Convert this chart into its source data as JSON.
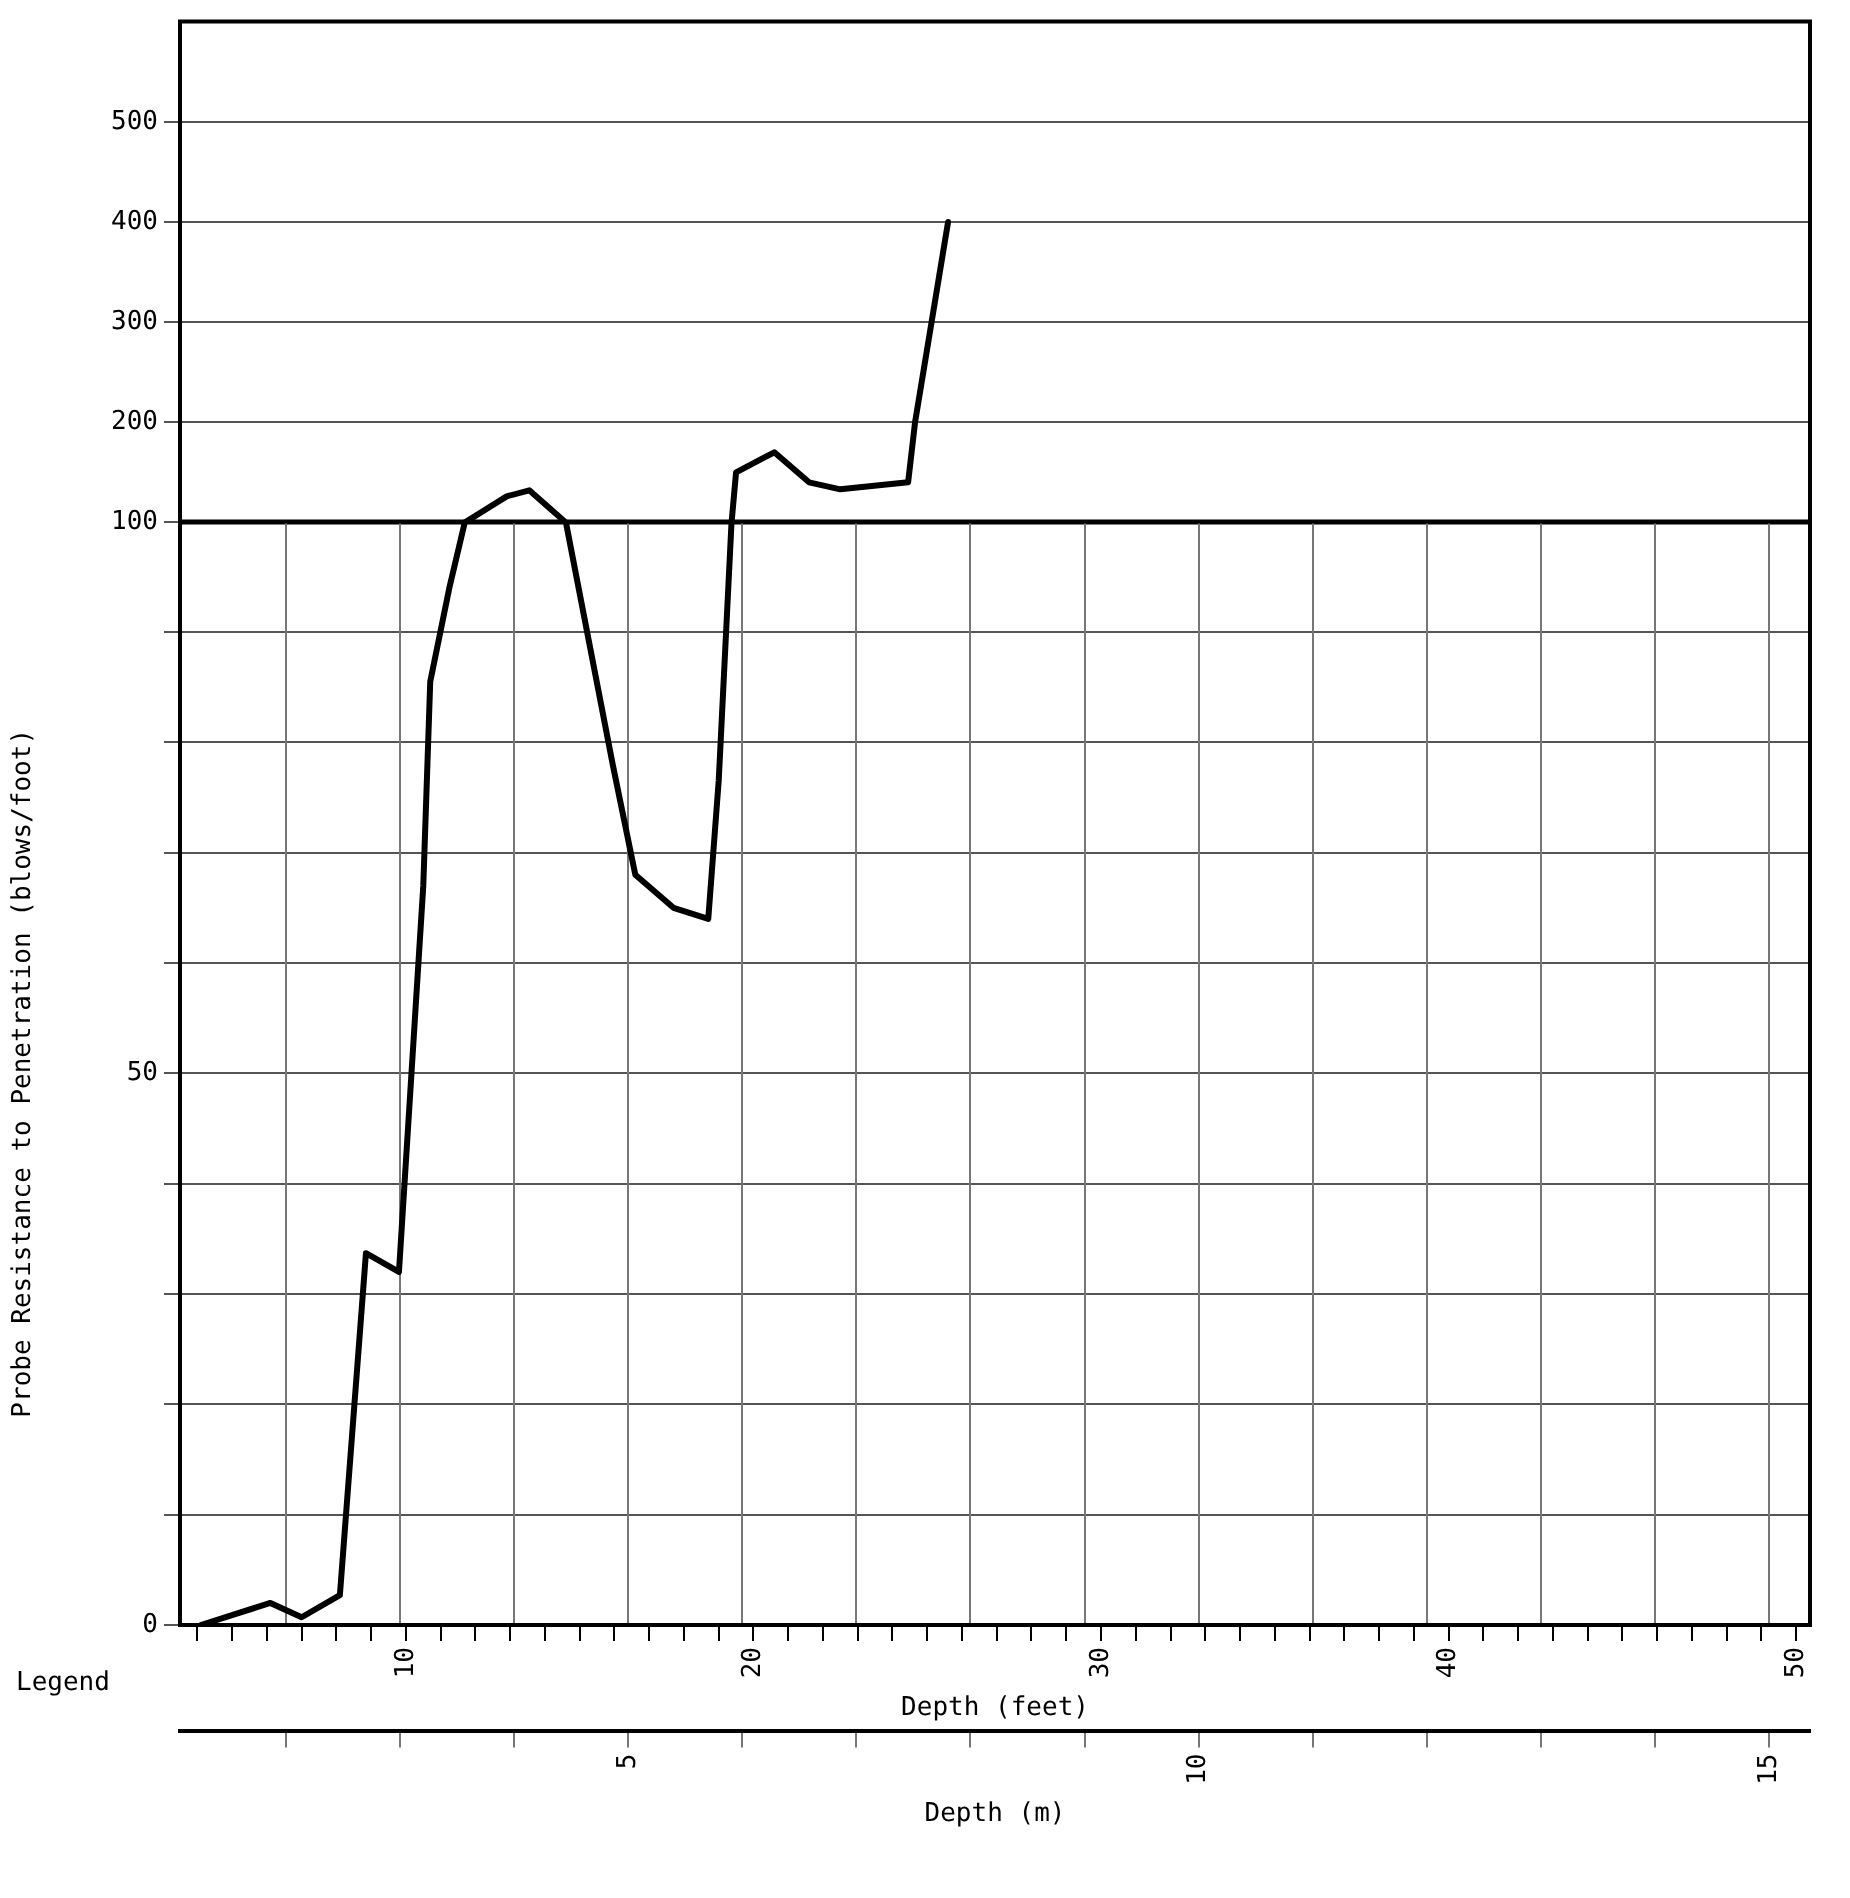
{
  "chart_data": [
    {
      "type": "line",
      "x": [
        11.7,
        12.9,
        13.55,
        14.6,
        15.95,
        16.6,
        17.7,
        18.7,
        19.0,
        19.37,
        19.5,
        20.6,
        21.6,
        22.5,
        24.45,
        24.65,
        25.6
      ],
      "series": [
        {
          "color": "#000000",
          "values": [
            100,
            126,
            132,
            100,
            null,
            null,
            null,
            null,
            null,
            100,
            150,
            170,
            140,
            133,
            140,
            200,
            400
          ]
        }
      ],
      "xlim": [
        3.5,
        50.4
      ],
      "tick_labels": "y",
      "ylim": [
        100,
        600
      ],
      "yticks": [
        100,
        200,
        300,
        400,
        500
      ],
      "grid": "y",
      "marker": "none",
      "line_style": "solid"
    },
    {
      "type": "line",
      "ylabel": "Probe Resistance to Penetration (blows/foot)",
      "xlabel": "Depth (feet)",
      "x2label": "Depth (m)",
      "annotations": [
        "Legend"
      ],
      "x": [
        4.1,
        6.1,
        7.0,
        8.1,
        8.85,
        9.8,
        10.5,
        10.7,
        11.25,
        11.7,
        12.9,
        13.55,
        14.6,
        15.95,
        16.6,
        17.7,
        18.7,
        19.0,
        19.37
      ],
      "series": [
        {
          "color": "#000000",
          "values": [
            0,
            2,
            0.7,
            2.7,
            33.7,
            32,
            67,
            85.5,
            94,
            100,
            null,
            null,
            100,
            78,
            68,
            65,
            64,
            76.5,
            100
          ]
        }
      ],
      "xlim": [
        3.5,
        50.4
      ],
      "xticks": [
        {
          "value": 4,
          "label": null
        },
        {
          "value": 5,
          "label": null
        },
        {
          "value": 6,
          "label": null
        },
        {
          "value": 7,
          "label": null
        },
        {
          "value": 8,
          "label": null
        },
        {
          "value": 9,
          "label": null
        },
        10,
        {
          "value": 11,
          "label": null
        },
        {
          "value": 12,
          "label": null
        },
        {
          "value": 13,
          "label": null
        },
        {
          "value": 14,
          "label": null
        },
        {
          "value": 15,
          "label": null
        },
        {
          "value": 16,
          "label": null
        },
        {
          "value": 17,
          "label": null
        },
        {
          "value": 18,
          "label": null
        },
        {
          "value": 19,
          "label": null
        },
        20,
        {
          "value": 21,
          "label": null
        },
        {
          "value": 22,
          "label": null
        },
        {
          "value": 23,
          "label": null
        },
        {
          "value": 24,
          "label": null
        },
        {
          "value": 25,
          "label": null
        },
        {
          "value": 26,
          "label": null
        },
        {
          "value": 27,
          "label": null
        },
        {
          "value": 28,
          "label": null
        },
        {
          "value": 29,
          "label": null
        },
        30,
        {
          "value": 31,
          "label": null
        },
        {
          "value": 32,
          "label": null
        },
        {
          "value": 33,
          "label": null
        },
        {
          "value": 34,
          "label": null
        },
        {
          "value": 35,
          "label": null
        },
        {
          "value": 36,
          "label": null
        },
        {
          "value": 37,
          "label": null
        },
        {
          "value": 38,
          "label": null
        },
        {
          "value": 39,
          "label": null
        },
        40,
        {
          "value": 41,
          "label": null
        },
        {
          "value": 42,
          "label": null
        },
        {
          "value": 43,
          "label": null
        },
        {
          "value": 44,
          "label": null
        },
        {
          "value": 45,
          "label": null
        },
        {
          "value": 46,
          "label": null
        },
        {
          "value": 47,
          "label": null
        },
        {
          "value": 48,
          "label": null
        },
        {
          "value": 49,
          "label": null
        },
        50
      ],
      "x2lim": [
        1.07,
        15.36
      ],
      "x2ticks": [
        {
          "value": 2,
          "label": null
        },
        {
          "value": 3,
          "label": null
        },
        {
          "value": 4,
          "label": null
        },
        5,
        {
          "value": 6,
          "label": null
        },
        {
          "value": 7,
          "label": null
        },
        {
          "value": 8,
          "label": null
        },
        {
          "value": 9,
          "label": null
        },
        10,
        {
          "value": 11,
          "label": null
        },
        {
          "value": 12,
          "label": null
        },
        {
          "value": 13,
          "label": null
        },
        {
          "value": 14,
          "label": null
        },
        15
      ],
      "ylim": [
        0,
        100
      ],
      "yticks": [
        0,
        {
          "value": 10,
          "label": null
        },
        {
          "value": 20,
          "label": null
        },
        {
          "value": 30,
          "label": null
        },
        {
          "value": 40,
          "label": null
        },
        50,
        {
          "value": 60,
          "label": null
        },
        {
          "value": 70,
          "label": null
        },
        {
          "value": 80,
          "label": null
        },
        {
          "value": 90,
          "label": null
        },
        {
          "value": 100,
          "label": null
        }
      ],
      "grid": true,
      "marker": "none",
      "line_style": "solid"
    }
  ]
}
